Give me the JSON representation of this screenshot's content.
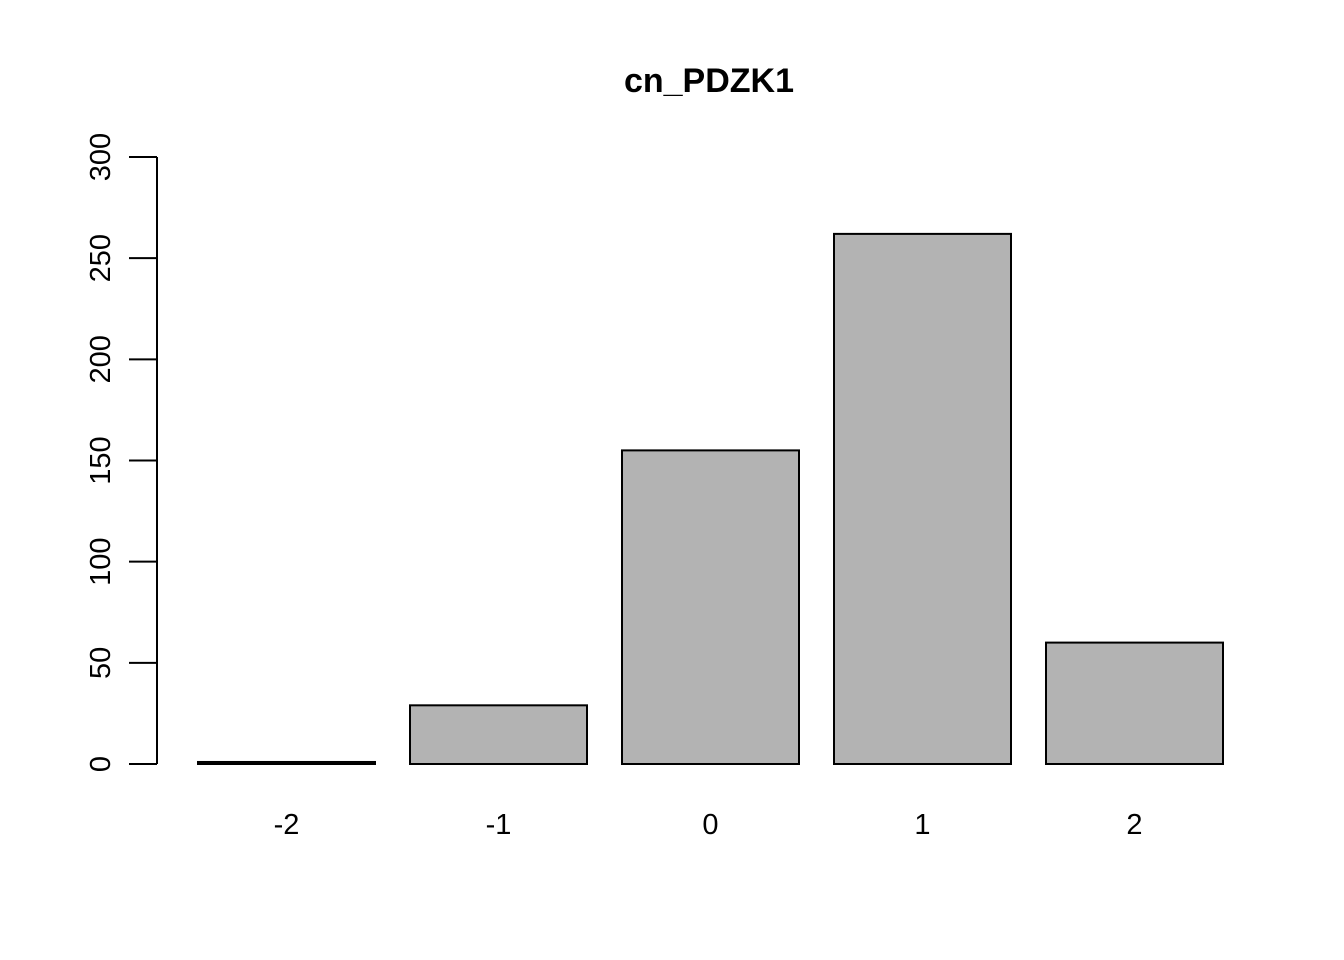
{
  "chart_data": {
    "type": "bar",
    "title": "cn_PDZK1",
    "xlabel": "",
    "ylabel": "",
    "categories": [
      "-2",
      "-1",
      "0",
      "1",
      "2"
    ],
    "values": [
      1,
      29,
      155,
      262,
      60
    ],
    "ylim": [
      0,
      300
    ],
    "yticks": [
      "0",
      "50",
      "100",
      "150",
      "200",
      "250",
      "300"
    ],
    "grid": false,
    "legend": "none",
    "bar_color": "#b3b3b3",
    "border_color": "#000000"
  }
}
